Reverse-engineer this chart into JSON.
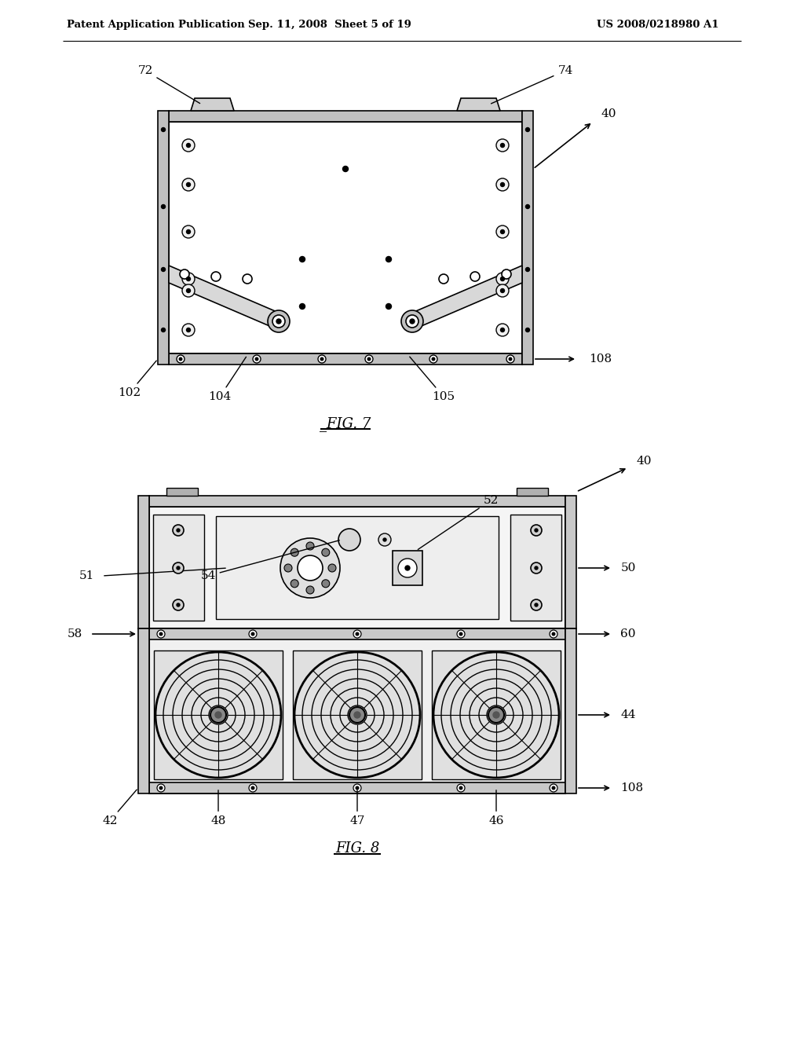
{
  "page_bg": "#ffffff",
  "header_left": "Patent Application Publication",
  "header_mid": "Sep. 11, 2008  Sheet 5 of 19",
  "header_right": "US 2008/0218980 A1",
  "fig7_label": "FIG. 7",
  "fig8_label": "FIG. 8"
}
